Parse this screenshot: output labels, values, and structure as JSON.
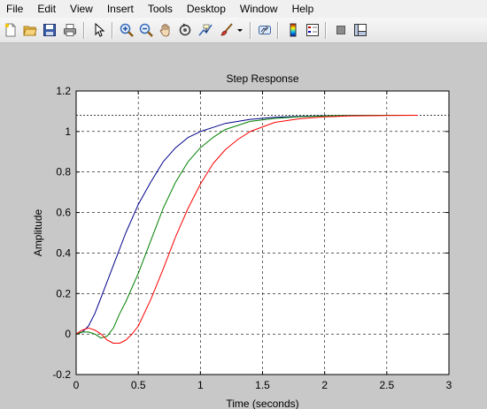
{
  "menu": {
    "items": [
      "File",
      "Edit",
      "View",
      "Insert",
      "Tools",
      "Desktop",
      "Window",
      "Help"
    ]
  },
  "toolbar": {
    "buttons": [
      {
        "icon": "new-figure-icon"
      },
      {
        "icon": "open-file-icon"
      },
      {
        "icon": "save-icon"
      },
      {
        "icon": "print-icon"
      },
      {
        "icon": "edit-plot-arrow-icon"
      },
      {
        "icon": "zoom-in-icon"
      },
      {
        "icon": "zoom-out-icon"
      },
      {
        "icon": "pan-hand-icon"
      },
      {
        "icon": "rotate-3d-icon"
      },
      {
        "icon": "data-cursor-icon"
      },
      {
        "icon": "brush-icon"
      },
      {
        "icon": "link-plot-icon"
      },
      {
        "icon": "colorbar-icon"
      },
      {
        "icon": "legend-icon"
      },
      {
        "icon": "hide-plot-tools-icon"
      },
      {
        "icon": "show-plot-tools-icon"
      }
    ]
  },
  "chart_data": {
    "type": "line",
    "title": "Step Response",
    "xlabel": "Time (seconds)",
    "ylabel": "Amplitude",
    "xlim": [
      0,
      3
    ],
    "ylim": [
      -0.2,
      1.2
    ],
    "xticks": [
      "0",
      "0.5",
      "1",
      "1.5",
      "2",
      "2.5",
      "3"
    ],
    "yticks": [
      "-0.2",
      "0",
      "0.2",
      "0.4",
      "0.6",
      "0.8",
      "1",
      "1.2"
    ],
    "grid": true,
    "steady_state": 1.08,
    "colors": {
      "blue": "#00008b",
      "green": "#008000",
      "red": "#ff0000",
      "reference": "#000000"
    },
    "series": [
      {
        "color": "#00008b",
        "x": [
          0,
          0.05,
          0.1,
          0.15,
          0.2,
          0.3,
          0.4,
          0.5,
          0.6,
          0.7,
          0.8,
          0.9,
          1.0,
          1.1,
          1.2,
          1.4,
          1.6,
          1.8,
          2.0,
          2.2,
          2.5,
          2.75
        ],
        "y": [
          0,
          0.01,
          0.04,
          0.1,
          0.18,
          0.34,
          0.5,
          0.64,
          0.75,
          0.85,
          0.92,
          0.97,
          1.0,
          1.02,
          1.04,
          1.06,
          1.07,
          1.075,
          1.078,
          1.079,
          1.08,
          1.08
        ]
      },
      {
        "color": "#008000",
        "x": [
          0,
          0.05,
          0.1,
          0.15,
          0.2,
          0.25,
          0.3,
          0.35,
          0.4,
          0.5,
          0.6,
          0.7,
          0.8,
          0.9,
          1.0,
          1.1,
          1.2,
          1.4,
          1.6,
          1.8,
          2.0,
          2.2,
          2.5,
          2.75
        ],
        "y": [
          0,
          0.01,
          0.01,
          0.0,
          -0.02,
          -0.01,
          0.03,
          0.1,
          0.16,
          0.3,
          0.46,
          0.62,
          0.75,
          0.85,
          0.92,
          0.97,
          1.01,
          1.05,
          1.065,
          1.073,
          1.077,
          1.079,
          1.08,
          1.08
        ]
      },
      {
        "color": "#ff0000",
        "x": [
          0,
          0.05,
          0.1,
          0.15,
          0.2,
          0.25,
          0.3,
          0.35,
          0.4,
          0.45,
          0.5,
          0.6,
          0.7,
          0.8,
          0.9,
          1.0,
          1.1,
          1.2,
          1.3,
          1.4,
          1.6,
          1.8,
          2.0,
          2.2,
          2.5,
          2.75
        ],
        "y": [
          0,
          0.02,
          0.03,
          0.02,
          0.0,
          -0.03,
          -0.045,
          -0.045,
          -0.03,
          0.0,
          0.04,
          0.17,
          0.32,
          0.48,
          0.62,
          0.74,
          0.84,
          0.91,
          0.96,
          1.0,
          1.045,
          1.063,
          1.072,
          1.077,
          1.079,
          1.08
        ]
      }
    ]
  }
}
